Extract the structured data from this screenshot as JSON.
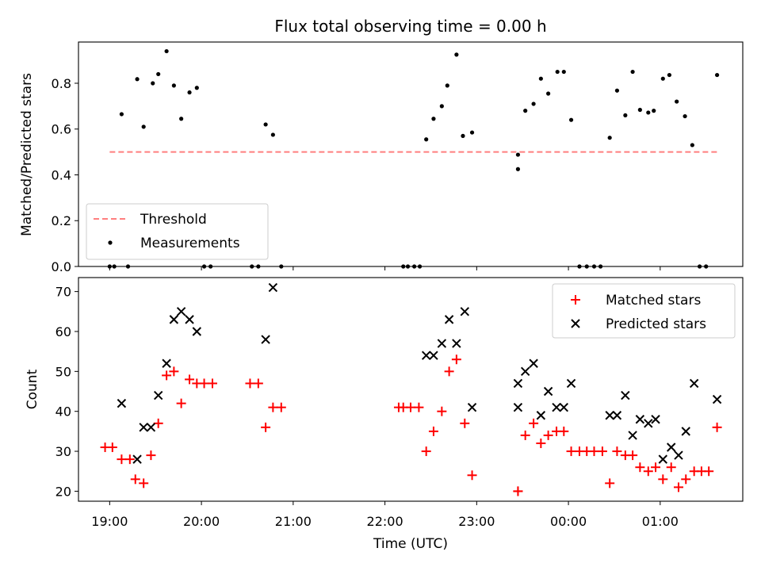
{
  "chart_data": [
    {
      "type": "scatter",
      "title": "Flux total observing time = 0.00 h",
      "ylabel": "Matched/Predicted stars",
      "ylim": [
        0,
        0.98
      ],
      "yticks": [
        "0.0",
        "0.2",
        "0.4",
        "0.6",
        "0.8"
      ],
      "threshold": {
        "name": "Threshold",
        "value": 0.5,
        "x_start": 19.0,
        "x_end": 25.65,
        "color": "#ff7f7f"
      },
      "legend": {
        "position": "lower-left",
        "entries": [
          "Threshold",
          "Measurements"
        ]
      },
      "series": [
        {
          "name": "Measurements",
          "color": "#000000",
          "points": [
            [
              19.0,
              0.0
            ],
            [
              19.05,
              0.0
            ],
            [
              19.2,
              0.0
            ],
            [
              19.13,
              0.665
            ],
            [
              19.3,
              0.818
            ],
            [
              19.37,
              0.61
            ],
            [
              19.47,
              0.8
            ],
            [
              19.53,
              0.84
            ],
            [
              19.62,
              0.94
            ],
            [
              19.7,
              0.79
            ],
            [
              19.78,
              0.645
            ],
            [
              19.87,
              0.76
            ],
            [
              19.95,
              0.78
            ],
            [
              20.03,
              0.0
            ],
            [
              20.1,
              0.0
            ],
            [
              20.55,
              0.0
            ],
            [
              20.62,
              0.0
            ],
            [
              20.7,
              0.62
            ],
            [
              20.78,
              0.575
            ],
            [
              20.87,
              0.0
            ],
            [
              22.2,
              0.0
            ],
            [
              22.25,
              0.0
            ],
            [
              22.32,
              0.0
            ],
            [
              22.38,
              0.0
            ],
            [
              22.45,
              0.555
            ],
            [
              22.53,
              0.645
            ],
            [
              22.62,
              0.7
            ],
            [
              22.68,
              0.79
            ],
            [
              22.78,
              0.925
            ],
            [
              22.85,
              0.57
            ],
            [
              22.95,
              0.585
            ],
            [
              23.45,
              0.425
            ],
            [
              23.45,
              0.488
            ],
            [
              23.53,
              0.68
            ],
            [
              23.62,
              0.71
            ],
            [
              23.7,
              0.82
            ],
            [
              23.78,
              0.755
            ],
            [
              23.88,
              0.85
            ],
            [
              23.95,
              0.85
            ],
            [
              24.03,
              0.64
            ],
            [
              24.12,
              0.0
            ],
            [
              24.2,
              0.0
            ],
            [
              24.28,
              0.0
            ],
            [
              24.35,
              0.0
            ],
            [
              24.45,
              0.562
            ],
            [
              24.53,
              0.768
            ],
            [
              24.62,
              0.66
            ],
            [
              24.7,
              0.85
            ],
            [
              24.78,
              0.684
            ],
            [
              24.87,
              0.672
            ],
            [
              24.93,
              0.68
            ],
            [
              25.03,
              0.82
            ],
            [
              25.1,
              0.836
            ],
            [
              25.18,
              0.72
            ],
            [
              25.27,
              0.656
            ],
            [
              25.35,
              0.53
            ],
            [
              25.43,
              0.0
            ],
            [
              25.5,
              0.0
            ],
            [
              25.62,
              0.836
            ]
          ]
        }
      ]
    },
    {
      "type": "scatter",
      "xlabel": "Time (UTC)",
      "ylabel": "Count",
      "xlim": [
        18.66,
        25.9
      ],
      "ylim": [
        17.5,
        73.5
      ],
      "xticks": [
        {
          "value": 19,
          "label": "19:00"
        },
        {
          "value": 20,
          "label": "20:00"
        },
        {
          "value": 21,
          "label": "21:00"
        },
        {
          "value": 22,
          "label": "22:00"
        },
        {
          "value": 23,
          "label": "23:00"
        },
        {
          "value": 24,
          "label": "00:00"
        },
        {
          "value": 25,
          "label": "01:00"
        }
      ],
      "yticks": [
        "20",
        "30",
        "40",
        "50",
        "60",
        "70"
      ],
      "legend": {
        "position": "top-right",
        "entries": [
          "Matched stars",
          "Predicted stars"
        ]
      },
      "series": [
        {
          "name": "Matched stars",
          "marker": "plus",
          "color": "#ff0000",
          "points": [
            [
              18.95,
              31
            ],
            [
              19.03,
              31
            ],
            [
              19.13,
              28
            ],
            [
              19.22,
              28
            ],
            [
              19.28,
              23
            ],
            [
              19.37,
              22
            ],
            [
              19.45,
              29
            ],
            [
              19.53,
              37
            ],
            [
              19.62,
              49
            ],
            [
              19.7,
              50
            ],
            [
              19.78,
              42
            ],
            [
              19.87,
              48
            ],
            [
              19.95,
              47
            ],
            [
              20.03,
              47
            ],
            [
              20.12,
              47
            ],
            [
              20.53,
              47
            ],
            [
              20.62,
              47
            ],
            [
              20.7,
              36
            ],
            [
              20.78,
              41
            ],
            [
              20.87,
              41
            ],
            [
              22.15,
              41
            ],
            [
              22.2,
              41
            ],
            [
              22.28,
              41
            ],
            [
              22.37,
              41
            ],
            [
              22.45,
              30
            ],
            [
              22.53,
              35
            ],
            [
              22.62,
              40
            ],
            [
              22.7,
              50
            ],
            [
              22.78,
              53
            ],
            [
              22.87,
              37
            ],
            [
              22.95,
              24
            ],
            [
              23.45,
              20
            ],
            [
              23.45,
              20
            ],
            [
              23.53,
              34
            ],
            [
              23.62,
              37
            ],
            [
              23.7,
              32
            ],
            [
              23.78,
              34
            ],
            [
              23.87,
              35
            ],
            [
              23.95,
              35
            ],
            [
              24.03,
              30
            ],
            [
              24.12,
              30
            ],
            [
              24.2,
              30
            ],
            [
              24.28,
              30
            ],
            [
              24.37,
              30
            ],
            [
              24.45,
              22
            ],
            [
              24.53,
              30
            ],
            [
              24.62,
              29
            ],
            [
              24.7,
              29
            ],
            [
              24.78,
              26
            ],
            [
              24.87,
              25
            ],
            [
              24.95,
              26
            ],
            [
              25.03,
              23
            ],
            [
              25.12,
              26
            ],
            [
              25.2,
              21
            ],
            [
              25.28,
              23
            ],
            [
              25.37,
              25
            ],
            [
              25.45,
              25
            ],
            [
              25.53,
              25
            ],
            [
              25.62,
              36
            ]
          ]
        },
        {
          "name": "Predicted stars",
          "marker": "x",
          "color": "#000000",
          "points": [
            [
              19.13,
              42
            ],
            [
              19.3,
              28
            ],
            [
              19.37,
              36
            ],
            [
              19.45,
              36
            ],
            [
              19.53,
              44
            ],
            [
              19.62,
              52
            ],
            [
              19.7,
              63
            ],
            [
              19.78,
              65
            ],
            [
              19.87,
              63
            ],
            [
              19.95,
              60
            ],
            [
              20.7,
              58
            ],
            [
              20.78,
              71
            ],
            [
              22.45,
              54
            ],
            [
              22.53,
              54
            ],
            [
              22.62,
              57
            ],
            [
              22.7,
              63
            ],
            [
              22.78,
              57
            ],
            [
              22.87,
              65
            ],
            [
              22.95,
              41
            ],
            [
              23.45,
              47
            ],
            [
              23.45,
              41
            ],
            [
              23.53,
              50
            ],
            [
              23.62,
              52
            ],
            [
              23.7,
              39
            ],
            [
              23.78,
              45
            ],
            [
              23.87,
              41
            ],
            [
              23.95,
              41
            ],
            [
              24.03,
              47
            ],
            [
              24.45,
              39
            ],
            [
              24.53,
              39
            ],
            [
              24.62,
              44
            ],
            [
              24.7,
              34
            ],
            [
              24.78,
              38
            ],
            [
              24.87,
              37
            ],
            [
              24.95,
              38
            ],
            [
              25.03,
              28
            ],
            [
              25.12,
              31
            ],
            [
              25.2,
              29
            ],
            [
              25.28,
              35
            ],
            [
              25.37,
              47
            ],
            [
              25.62,
              43
            ]
          ]
        }
      ]
    }
  ]
}
